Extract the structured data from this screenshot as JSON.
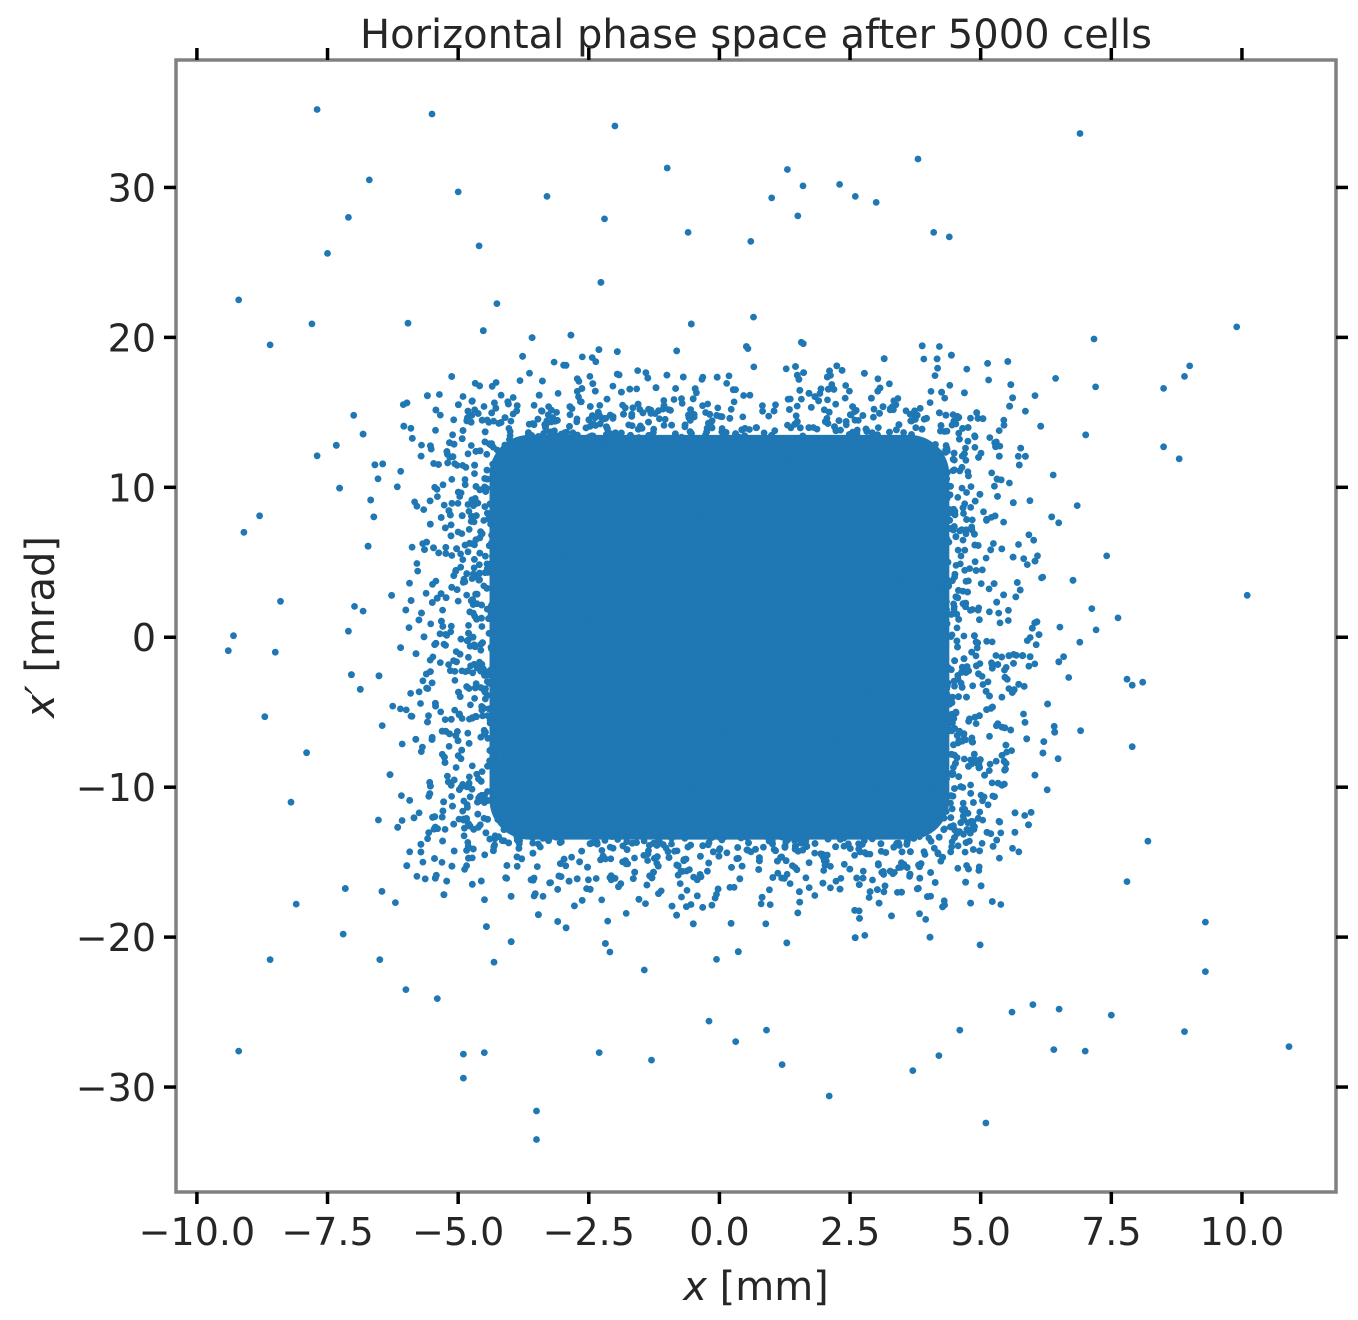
{
  "chart_data": {
    "type": "scatter",
    "title": "Horizontal phase space after 5000 cells",
    "xlabel_var": "x",
    "xlabel_unit": "[mm]",
    "ylabel_var": "x′",
    "ylabel_unit": "[mrad]",
    "xlim": [
      -10.4,
      11.8
    ],
    "ylim": [
      -37,
      38.5
    ],
    "x_ticks": [
      -10,
      -7.5,
      -5,
      -2.5,
      0,
      2.5,
      5,
      7.5,
      10
    ],
    "x_tick_labels": [
      "−10.0",
      "−7.5",
      "−5.0",
      "−2.5",
      "0.0",
      "2.5",
      "5.0",
      "7.5",
      "10.0"
    ],
    "y_ticks": [
      -30,
      -20,
      -10,
      0,
      10,
      20,
      30
    ],
    "y_tick_labels": [
      "−30",
      "−20",
      "−10",
      "0",
      "10",
      "20",
      "30"
    ],
    "grid": false,
    "legend": "none",
    "point_color": "#1f77b4",
    "distribution": {
      "description_note": "dense uniform core with gaussian halo",
      "core_x_range": [
        -5.0,
        5.0
      ],
      "core_y_range": [
        -15.0,
        15.0
      ],
      "halo_sigma_x": 1.2,
      "halo_sigma_y": 3.5
    },
    "outliers": [
      [
        -7.7,
        35.2
      ],
      [
        -5.5,
        34.9
      ],
      [
        -2.0,
        34.1
      ],
      [
        6.9,
        33.6
      ],
      [
        3.8,
        31.9
      ],
      [
        -1.0,
        31.3
      ],
      [
        1.3,
        31.2
      ],
      [
        -6.7,
        30.5
      ],
      [
        1.6,
        30.1
      ],
      [
        2.3,
        30.2
      ],
      [
        -5.0,
        29.7
      ],
      [
        -3.3,
        29.4
      ],
      [
        1.0,
        29.3
      ],
      [
        2.6,
        29.4
      ],
      [
        3.0,
        29.0
      ],
      [
        -7.1,
        28.0
      ],
      [
        -2.2,
        27.9
      ],
      [
        1.5,
        28.1
      ],
      [
        4.1,
        27.0
      ],
      [
        4.4,
        26.7
      ],
      [
        -0.6,
        27.0
      ],
      [
        0.6,
        26.4
      ],
      [
        -4.6,
        26.1
      ],
      [
        -7.5,
        25.6
      ],
      [
        -9.2,
        22.5
      ],
      [
        -8.6,
        19.5
      ],
      [
        -7.8,
        20.9
      ],
      [
        9.9,
        20.7
      ],
      [
        -7.0,
        14.8
      ],
      [
        9.0,
        18.1
      ],
      [
        8.9,
        17.4
      ],
      [
        8.5,
        16.6
      ],
      [
        7.2,
        16.7
      ],
      [
        8.5,
        12.7
      ],
      [
        8.8,
        11.9
      ],
      [
        -7.7,
        12.1
      ],
      [
        -8.8,
        8.1
      ],
      [
        -9.1,
        7.0
      ],
      [
        -8.4,
        2.4
      ],
      [
        10.1,
        2.8
      ],
      [
        -9.3,
        0.1
      ],
      [
        -9.4,
        -0.9
      ],
      [
        -8.5,
        -1.0
      ],
      [
        -7.1,
        0.4
      ],
      [
        -8.7,
        -5.3
      ],
      [
        -7.9,
        -7.7
      ],
      [
        7.8,
        -2.8
      ],
      [
        8.1,
        -3.0
      ],
      [
        7.9,
        -3.2
      ],
      [
        7.9,
        -7.3
      ],
      [
        -8.2,
        -11.0
      ],
      [
        8.2,
        -13.6
      ],
      [
        7.8,
        -16.3
      ],
      [
        -8.1,
        -17.8
      ],
      [
        -7.2,
        -19.8
      ],
      [
        -8.6,
        -21.5
      ],
      [
        9.3,
        -19.0
      ],
      [
        9.3,
        -22.3
      ],
      [
        -6.0,
        -23.5
      ],
      [
        -5.4,
        -24.1
      ],
      [
        -9.2,
        -27.6
      ],
      [
        -4.9,
        -29.4
      ],
      [
        -4.9,
        -27.8
      ],
      [
        -4.5,
        -27.7
      ],
      [
        -2.3,
        -27.7
      ],
      [
        -1.3,
        -28.2
      ],
      [
        1.2,
        -28.5
      ],
      [
        2.1,
        -30.6
      ],
      [
        3.7,
        -28.9
      ],
      [
        4.2,
        -27.9
      ],
      [
        5.1,
        -32.4
      ],
      [
        6.4,
        -27.5
      ],
      [
        7.0,
        -27.6
      ],
      [
        8.9,
        -26.3
      ],
      [
        10.9,
        -27.3
      ],
      [
        -3.5,
        -31.6
      ],
      [
        -3.5,
        -33.5
      ],
      [
        6.0,
        -24.5
      ],
      [
        6.5,
        -24.8
      ],
      [
        7.5,
        -25.2
      ],
      [
        -6.5,
        -21.5
      ],
      [
        5.6,
        -25.0
      ],
      [
        4.6,
        -26.2
      ],
      [
        0.9,
        -26.2
      ],
      [
        -0.2,
        -25.6
      ]
    ]
  }
}
